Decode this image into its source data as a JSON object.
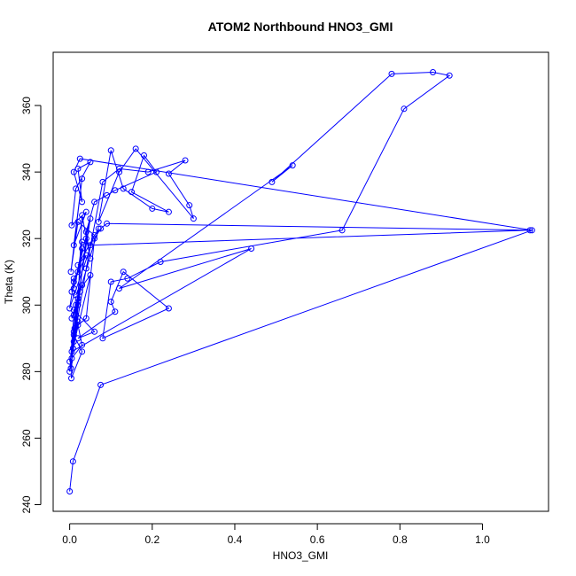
{
  "chart_data": {
    "type": "line",
    "title": "ATOM2 Northbound HNO3_GMI",
    "xlabel": "HNO3_GMI",
    "ylabel": "Theta (K)",
    "xlim": [
      -0.04,
      1.16
    ],
    "ylim": [
      238,
      376
    ],
    "xticks": [
      0.0,
      0.2,
      0.4,
      0.6,
      0.8,
      1.0
    ],
    "xtick_labels": [
      "0.0",
      "0.2",
      "0.4",
      "0.6",
      "0.8",
      "1.0"
    ],
    "yticks": [
      240,
      260,
      280,
      300,
      320,
      340,
      360
    ],
    "ytick_labels": [
      "240",
      "260",
      "280",
      "300",
      "320",
      "340",
      "360"
    ],
    "grid": false,
    "marker": "open-circle",
    "series": [
      {
        "color": "#0000ff",
        "x": [
          0.0,
          0.008,
          0.075,
          1.12,
          0.025,
          0.01,
          0.03,
          0.02,
          0.05,
          0.015,
          0.005,
          0.04,
          0.01,
          0.03,
          0.003,
          0.02,
          0.06,
          0.0,
          0.01,
          0.04,
          0.02,
          0.07,
          0.005,
          0.03,
          0.015,
          0.05,
          0.0,
          0.008,
          0.02,
          0.04,
          0.012,
          0.03,
          0.01,
          0.05,
          0.02,
          0.015,
          0.003,
          0.025,
          0.01,
          0.04,
          0.08,
          0.12,
          0.19,
          0.28,
          0.24,
          0.29,
          0.3,
          0.16,
          0.12,
          0.07,
          0.1,
          0.13,
          0.2,
          0.24,
          0.15,
          0.18,
          0.21,
          0.11,
          0.09,
          0.06,
          0.04,
          0.05,
          0.03,
          0.02,
          0.01,
          0.005,
          0.44,
          0.12,
          0.54,
          0.49,
          0.78,
          0.88,
          0.92,
          0.81,
          0.66,
          0.22,
          0.14,
          0.1,
          0.08,
          0.24,
          0.13,
          0.1,
          0.11,
          0.02,
          0.06,
          0.01,
          0.004,
          0.03,
          0.01,
          0.02,
          0.0,
          0.01,
          0.015,
          0.005,
          0.03,
          0.02,
          0.04,
          0.06,
          0.075,
          0.09,
          1.115,
          0.05,
          0.03,
          0.02,
          0.01,
          0.005
        ],
        "y": [
          244,
          253,
          276,
          322.5,
          344,
          340,
          331,
          341,
          343,
          335,
          324,
          328,
          318,
          338,
          310,
          325,
          321,
          299,
          307,
          315,
          312,
          323,
          296,
          306,
          303,
          309,
          283,
          287,
          300,
          320,
          293,
          317,
          305,
          326,
          302,
          297,
          281,
          304,
          289,
          311,
          337,
          341,
          340,
          343.5,
          339.5,
          330,
          326,
          347,
          340,
          325,
          346.5,
          335,
          329,
          328,
          334,
          345,
          340,
          334.5,
          333,
          331,
          322,
          314,
          327,
          301,
          292,
          286,
          317,
          305,
          342,
          337,
          369.5,
          370,
          369,
          359,
          322.5,
          313,
          308,
          307,
          290,
          299,
          310,
          301,
          298,
          290,
          292,
          298.5,
          278,
          286,
          291,
          295,
          280,
          297,
          300,
          284,
          288,
          294,
          296,
          320,
          323,
          324.5,
          322.5,
          318,
          319,
          310,
          308,
          304
        ]
      }
    ]
  }
}
